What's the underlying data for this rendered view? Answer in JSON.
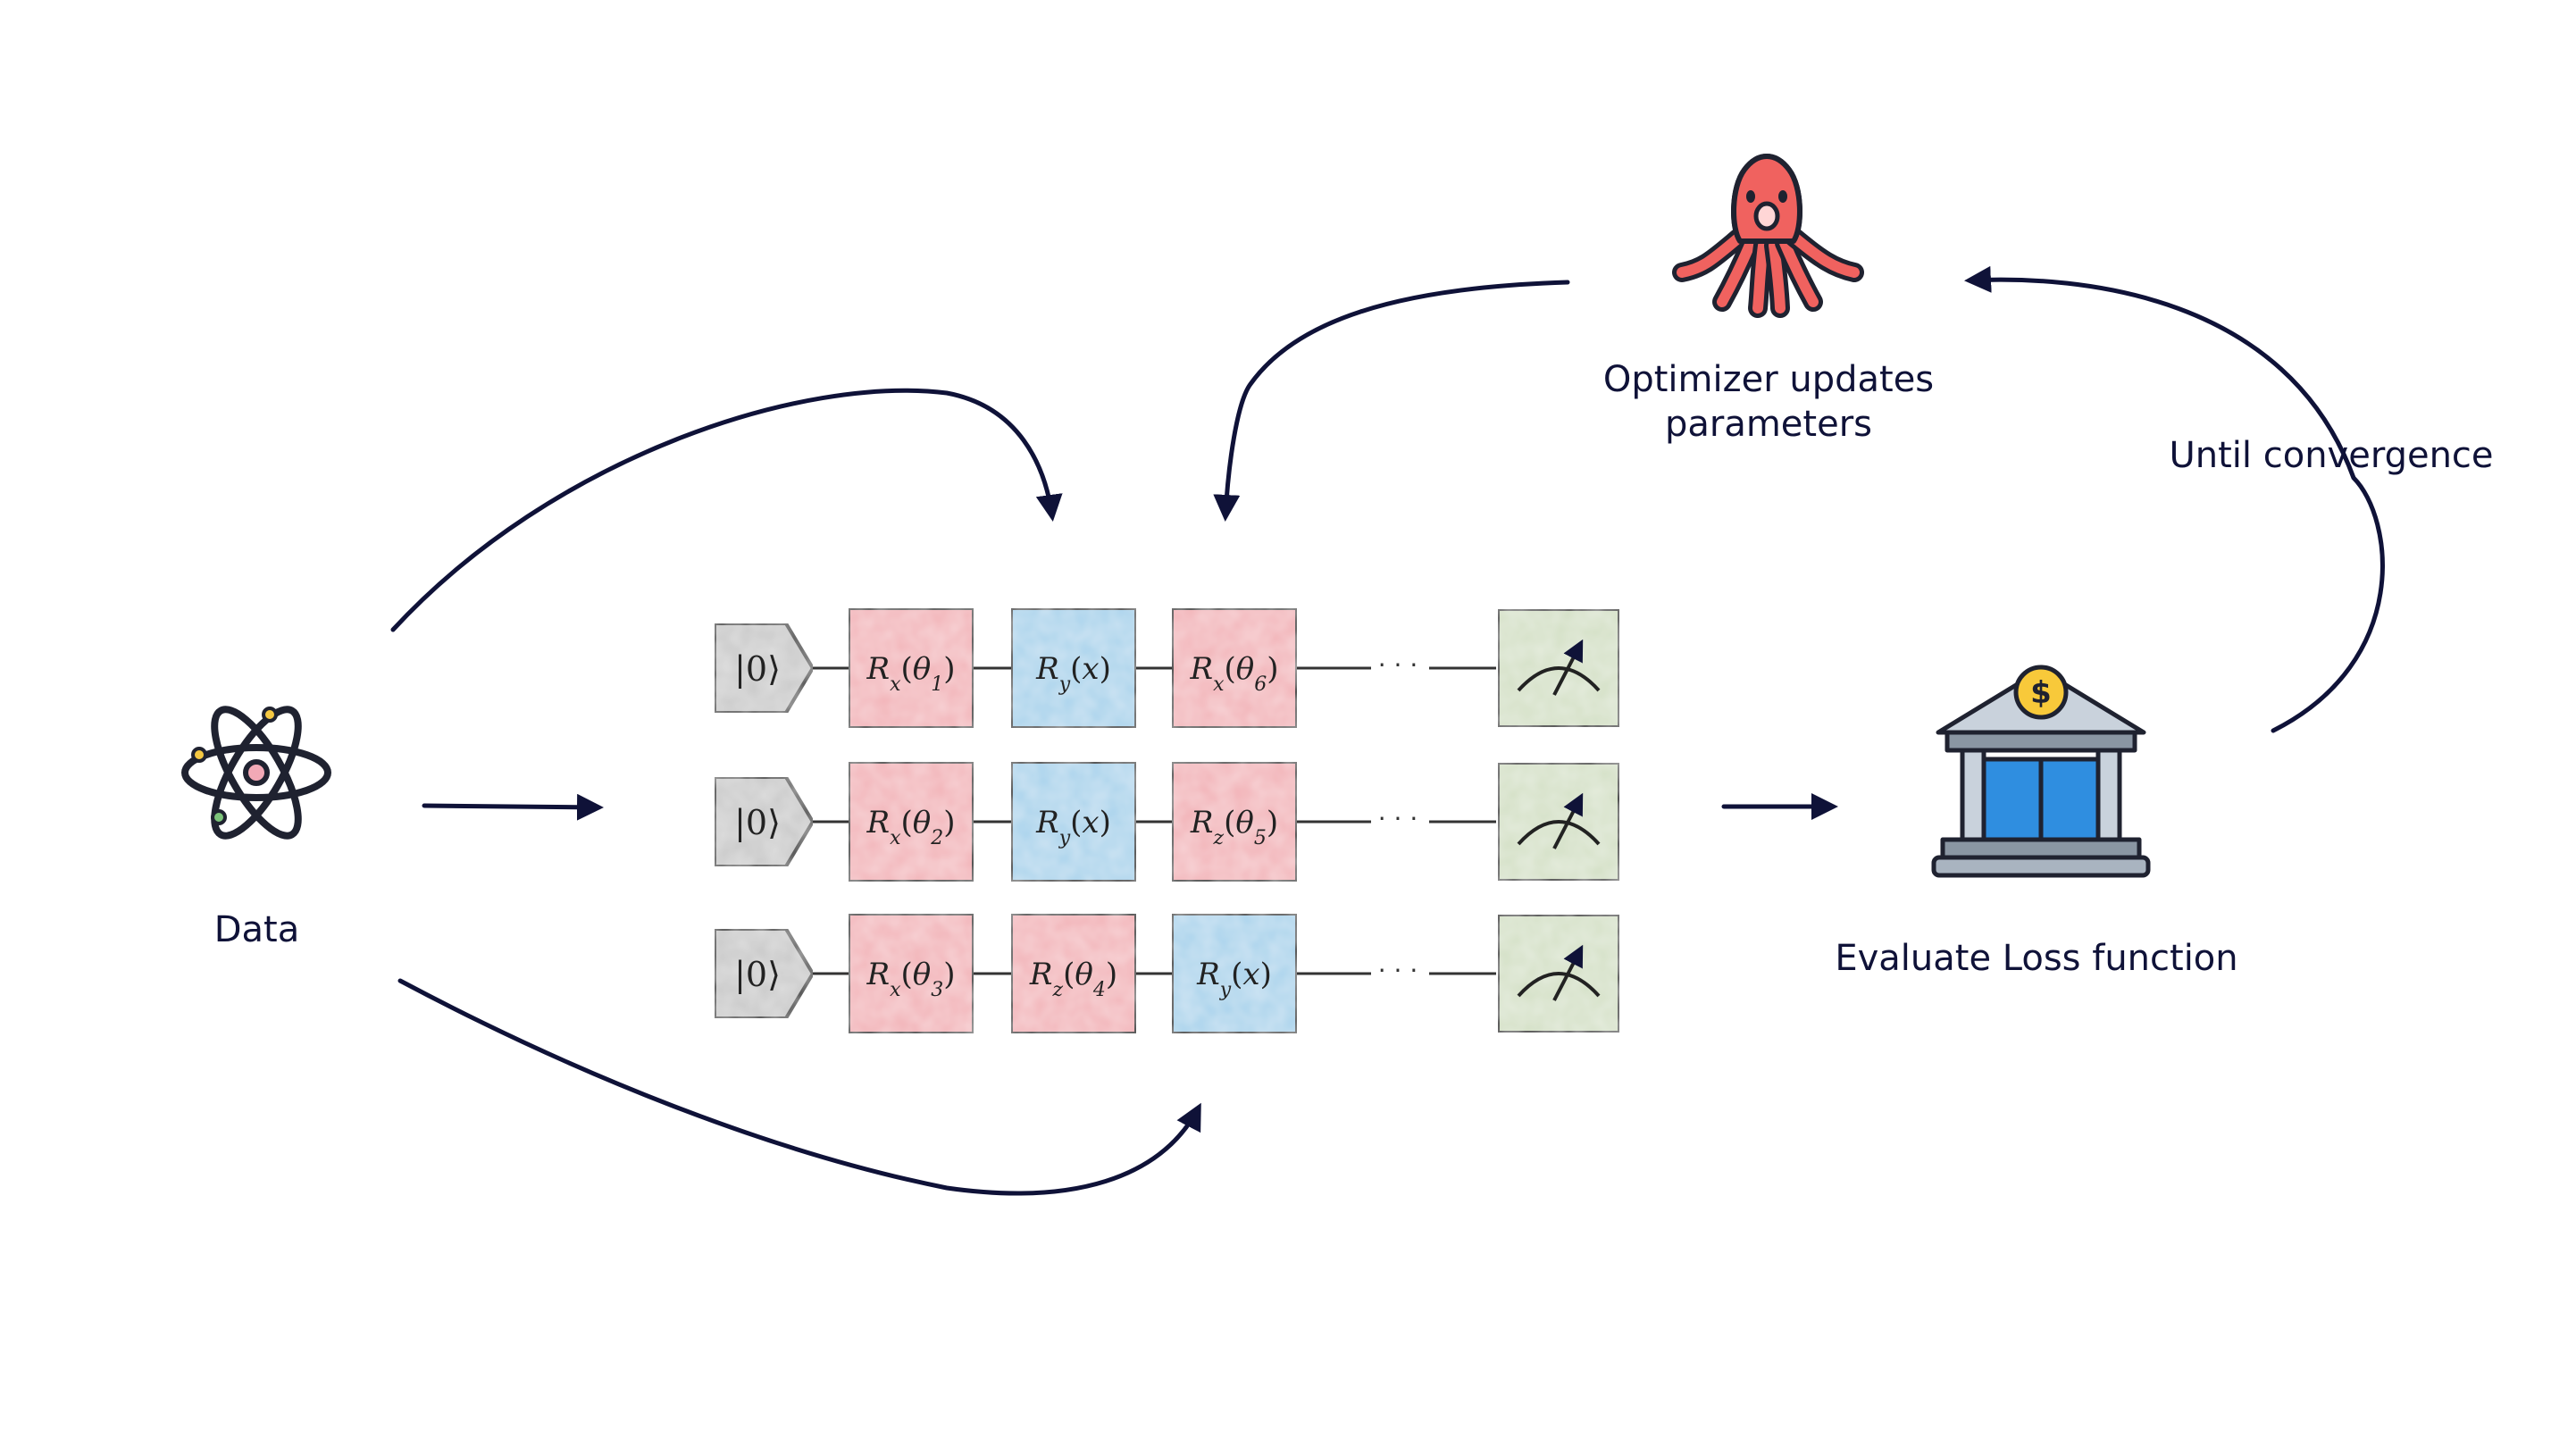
{
  "labels": {
    "data": "Data",
    "optimizer_line1": "Optimizer updates",
    "optimizer_line2": "parameters",
    "until": "Until convergence",
    "evaluate": "Evaluate Loss function"
  },
  "circuit": {
    "rows": [
      {
        "init": "|0⟩",
        "gates": [
          {
            "op": "R",
            "sub": "x",
            "arg": "θ",
            "argsub": "1",
            "color": "red"
          },
          {
            "op": "R",
            "sub": "y",
            "arg": "x",
            "argsub": "",
            "color": "blue"
          },
          {
            "op": "R",
            "sub": "x",
            "arg": "θ",
            "argsub": "6",
            "color": "red"
          }
        ],
        "ellipsis": "· · ·"
      },
      {
        "init": "|0⟩",
        "gates": [
          {
            "op": "R",
            "sub": "x",
            "arg": "θ",
            "argsub": "2",
            "color": "red"
          },
          {
            "op": "R",
            "sub": "y",
            "arg": "x",
            "argsub": "",
            "color": "blue"
          },
          {
            "op": "R",
            "sub": "z",
            "arg": "θ",
            "argsub": "5",
            "color": "red"
          }
        ],
        "ellipsis": "· · ·"
      },
      {
        "init": "|0⟩",
        "gates": [
          {
            "op": "R",
            "sub": "x",
            "arg": "θ",
            "argsub": "3",
            "color": "red"
          },
          {
            "op": "R",
            "sub": "z",
            "arg": "θ",
            "argsub": "4",
            "color": "red"
          },
          {
            "op": "R",
            "sub": "y",
            "arg": "x",
            "argsub": "",
            "color": "blue"
          }
        ],
        "ellipsis": "· · ·"
      }
    ]
  },
  "colors": {
    "arrow": "#0f1238",
    "gate_red": "#f2b3b8",
    "gate_blue": "#a9d3ec",
    "gate_green": "#d4e0c6",
    "init_gray": "#c9c9c9",
    "octopus": "#f0625f",
    "bank_blue": "#2f8ee0",
    "bank_gray": "#a9b4c0",
    "coin": "#f8c93a"
  },
  "icons": [
    "atom-icon",
    "octopus-icon",
    "bank-icon",
    "measurement-icon"
  ]
}
